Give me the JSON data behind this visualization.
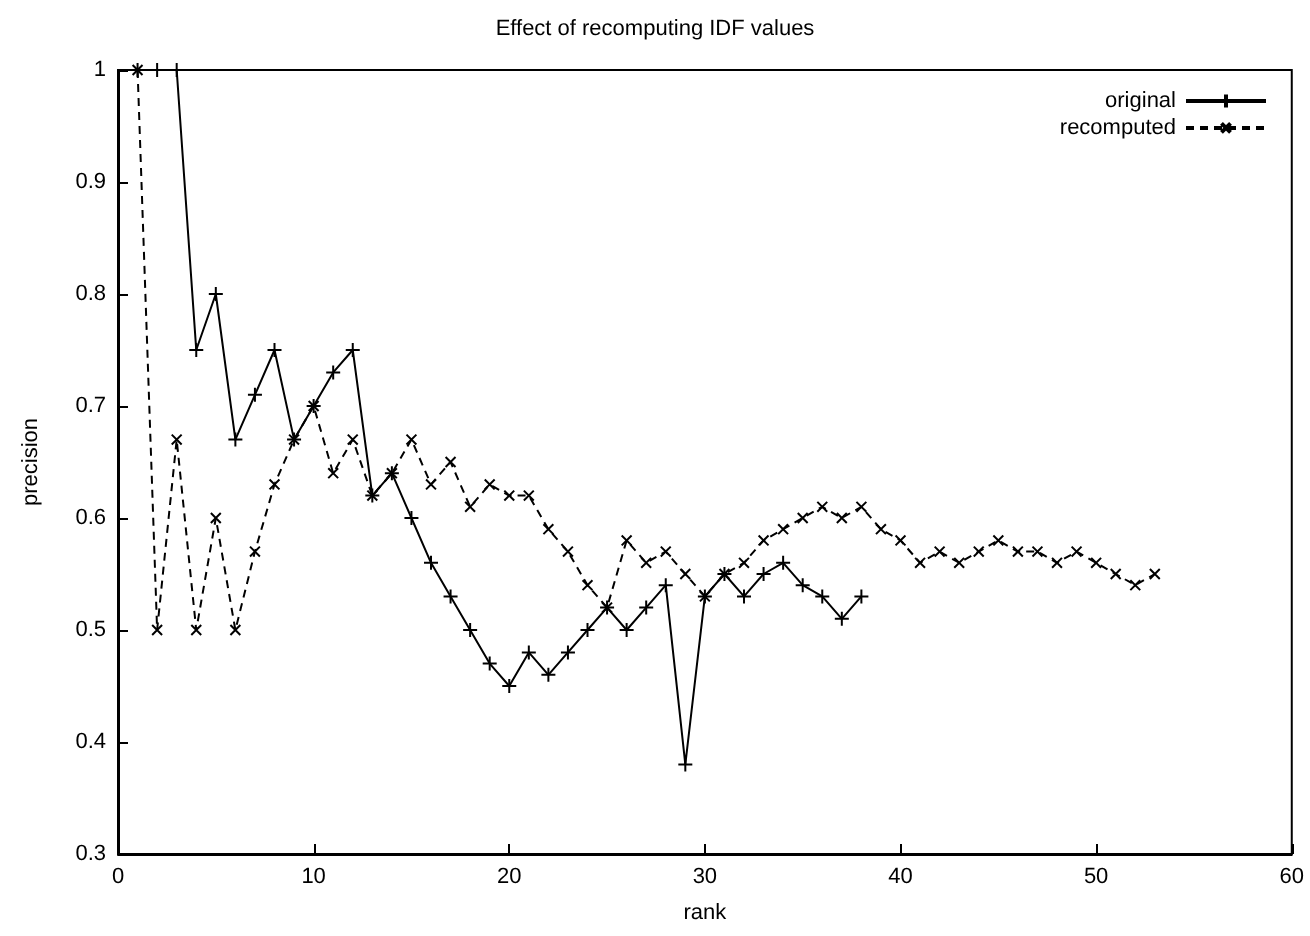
{
  "chart_data": {
    "type": "line",
    "title": "Effect of recomputing IDF values",
    "xlabel": "rank",
    "ylabel": "precision",
    "xlim": [
      0,
      60
    ],
    "xticks": [
      0,
      10,
      20,
      30,
      40,
      50,
      60
    ],
    "ylim": [
      0.3,
      1
    ],
    "yticks": [
      0.3,
      0.4,
      0.5,
      0.6,
      0.7,
      0.8,
      0.9,
      1
    ],
    "grid": false,
    "legend": "top right",
    "marker": "cross",
    "series": [
      {
        "name": "original",
        "color": "#000000",
        "line_style": "solid",
        "x": [
          1,
          2,
          3,
          4,
          5,
          6,
          7,
          8,
          9,
          10,
          11,
          12,
          13,
          14,
          15,
          16,
          17,
          18,
          19,
          20,
          21,
          22,
          23,
          24,
          25,
          26,
          27,
          28,
          29,
          30,
          31,
          32,
          33,
          34,
          35,
          36,
          37,
          38
        ],
        "values": [
          1,
          1,
          1,
          0.75,
          0.8,
          0.67,
          0.71,
          0.75,
          0.67,
          0.7,
          0.73,
          0.75,
          0.62,
          0.64,
          0.6,
          0.56,
          0.53,
          0.5,
          0.47,
          0.45,
          0.48,
          0.46,
          0.48,
          0.5,
          0.52,
          0.5,
          0.52,
          0.54,
          0.38,
          0.53,
          0.55,
          0.53,
          0.55,
          0.56,
          0.54,
          0.53,
          0.51,
          0.53
        ]
      },
      {
        "name": "recomputed",
        "color": "#000000",
        "line_style": "dashed",
        "x": [
          1,
          2,
          3,
          4,
          5,
          6,
          7,
          8,
          9,
          10,
          11,
          12,
          13,
          14,
          15,
          16,
          17,
          18,
          19,
          20,
          21,
          22,
          23,
          24,
          25,
          26,
          27,
          28,
          29,
          30,
          31,
          32,
          33,
          34,
          35,
          36,
          37,
          38,
          39,
          40,
          41,
          42,
          43,
          44,
          45,
          46,
          47,
          48,
          49,
          50,
          51,
          52,
          53
        ],
        "values": [
          1,
          0.5,
          0.67,
          0.5,
          0.6,
          0.5,
          0.57,
          0.63,
          0.67,
          0.7,
          0.64,
          0.67,
          0.62,
          0.64,
          0.67,
          0.63,
          0.65,
          0.61,
          0.63,
          0.62,
          0.62,
          0.59,
          0.57,
          0.54,
          0.52,
          0.58,
          0.56,
          0.57,
          0.55,
          0.53,
          0.55,
          0.56,
          0.58,
          0.59,
          0.6,
          0.61,
          0.6,
          0.61,
          0.59,
          0.58,
          0.56,
          0.57,
          0.56,
          0.57,
          0.58,
          0.57,
          0.57,
          0.56,
          0.57,
          0.56,
          0.55,
          0.54,
          0.55
        ]
      }
    ]
  }
}
